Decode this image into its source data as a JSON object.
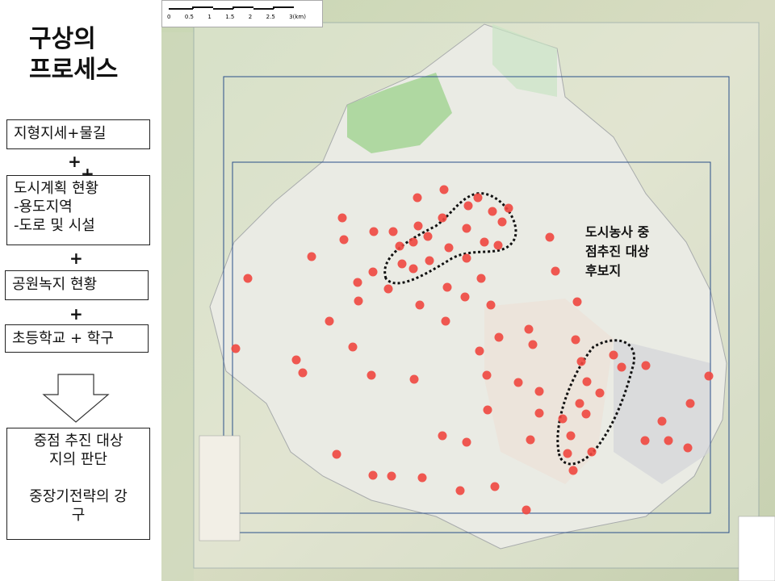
{
  "title": {
    "line1": "구상의",
    "line2": "프로세스"
  },
  "process_steps": [
    {
      "lines": [
        "지형지세+물길"
      ]
    },
    {
      "lines": [
        "도시계획 현황",
        "-용도지역",
        "-도로 및 시설"
      ]
    },
    {
      "lines": [
        "공원녹지 현황"
      ]
    },
    {
      "lines": [
        "초등학교 + 학구"
      ]
    }
  ],
  "plus_sign": "+",
  "result_box": {
    "lines": [
      "중점 추진 대상",
      "지의 판단",
      "",
      "중장기전략의 강",
      "구"
    ]
  },
  "map": {
    "scale_ticks": [
      "0",
      "0.5",
      "1",
      "1.5",
      "2",
      "2.5",
      "3(km)"
    ],
    "annotation": [
      "도시농사 중",
      "점추진 대상",
      "후보지"
    ],
    "colors": {
      "dot": "#f0473f",
      "frame": "#2a4f8a",
      "park": "#7ec46a",
      "dashed_outline": "#111111"
    }
  }
}
